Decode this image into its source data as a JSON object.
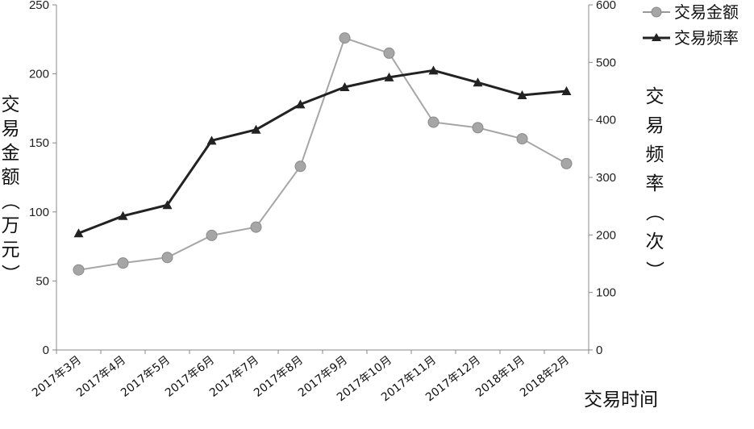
{
  "chart_data": {
    "type": "line",
    "categories": [
      "2017年3月",
      "2017年4月",
      "2017年5月",
      "2017年6月",
      "2017年7月",
      "2017年8月",
      "2017年9月",
      "2017年10月",
      "2017年11月",
      "2017年12月",
      "2018年1月",
      "2018年2月"
    ],
    "series": [
      {
        "name": "交易金额",
        "axis": "left",
        "marker": "circle",
        "color": "#999999",
        "values": [
          58,
          63,
          67,
          83,
          89,
          133,
          226,
          215,
          165,
          161,
          153,
          135
        ]
      },
      {
        "name": "交易频率",
        "axis": "right",
        "marker": "triangle",
        "color": "#222222",
        "values": [
          203,
          233,
          252,
          364,
          383,
          427,
          457,
          474,
          486,
          465,
          443,
          450
        ]
      }
    ],
    "xlabel": "交易时间",
    "ylabel_left": "交易金额（万元）",
    "ylabel_right": "交易频率（次）",
    "ylim_left": [
      0,
      250
    ],
    "ylim_right": [
      0,
      600
    ],
    "yticks_left": [
      "0",
      "50",
      "100",
      "150",
      "200",
      "250"
    ],
    "yticks_right": [
      "0",
      "100",
      "200",
      "300",
      "400",
      "500",
      "600"
    ],
    "grid": false,
    "legend_position": "top-right"
  }
}
